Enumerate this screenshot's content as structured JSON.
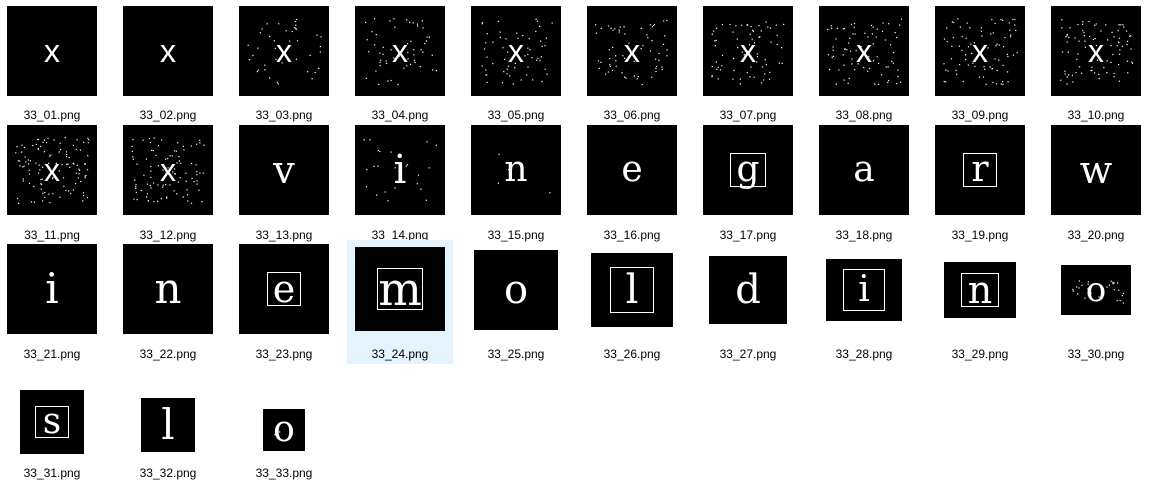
{
  "files": [
    {
      "name": "33_01.png",
      "char": "x",
      "font": "sans",
      "noise": 0,
      "boxed": false
    },
    {
      "name": "33_02.png",
      "char": "x",
      "font": "sans",
      "noise": 0,
      "boxed": false
    },
    {
      "name": "33_03.png",
      "char": "x",
      "font": "sans",
      "noise": 40,
      "boxed": false
    },
    {
      "name": "33_04.png",
      "char": "x",
      "font": "sans",
      "noise": 55,
      "boxed": false
    },
    {
      "name": "33_05.png",
      "char": "x",
      "font": "sans",
      "noise": 60,
      "boxed": false
    },
    {
      "name": "33_06.png",
      "char": "x",
      "font": "sans",
      "noise": 65,
      "boxed": false
    },
    {
      "name": "33_07.png",
      "char": "x",
      "font": "sans",
      "noise": 70,
      "boxed": false
    },
    {
      "name": "33_08.png",
      "char": "x",
      "font": "sans",
      "noise": 75,
      "boxed": false
    },
    {
      "name": "33_09.png",
      "char": "x",
      "font": "sans",
      "noise": 80,
      "boxed": false
    },
    {
      "name": "33_10.png",
      "char": "x",
      "font": "sans",
      "noise": 85,
      "boxed": false
    },
    {
      "name": "33_11.png",
      "char": "x",
      "font": "sans",
      "noise": 110,
      "boxed": false
    },
    {
      "name": "33_12.png",
      "char": "x",
      "font": "sans",
      "noise": 95,
      "boxed": false
    },
    {
      "name": "33_13.png",
      "char": "v",
      "font": "serif",
      "noise": 0,
      "boxed": false
    },
    {
      "name": "33_14.png",
      "char": "i",
      "font": "serif",
      "noise": 25,
      "boxed": false
    },
    {
      "name": "33_15.png",
      "char": "n",
      "font": "serif",
      "noise": 4,
      "boxed": false
    },
    {
      "name": "33_16.png",
      "char": "e",
      "font": "serif",
      "noise": 0,
      "boxed": false
    },
    {
      "name": "33_17.png",
      "char": "g",
      "font": "serif",
      "noise": 0,
      "boxed": true
    },
    {
      "name": "33_18.png",
      "char": "a",
      "font": "serif",
      "noise": 0,
      "boxed": false
    },
    {
      "name": "33_19.png",
      "char": "r",
      "font": "serif",
      "noise": 0,
      "boxed": true
    },
    {
      "name": "33_20.png",
      "char": "w",
      "font": "serif",
      "noise": 0,
      "boxed": false
    },
    {
      "name": "33_21.png",
      "char": "i",
      "font": "serif",
      "noise": 0,
      "boxed": false
    },
    {
      "name": "33_22.png",
      "char": "n",
      "font": "serif",
      "noise": 0,
      "boxed": false
    },
    {
      "name": "33_23.png",
      "char": "e",
      "font": "serif",
      "noise": 0,
      "boxed": true
    },
    {
      "name": "33_24.png",
      "char": "m",
      "font": "serif",
      "noise": 0,
      "boxed": true,
      "selected": true
    },
    {
      "name": "33_25.png",
      "char": "o",
      "font": "serif",
      "noise": 0,
      "boxed": false
    },
    {
      "name": "33_26.png",
      "char": "l",
      "font": "serif",
      "noise": 0,
      "boxed": true
    },
    {
      "name": "33_27.png",
      "char": "d",
      "font": "serif",
      "noise": 0,
      "boxed": false
    },
    {
      "name": "33_28.png",
      "char": "i",
      "font": "serif",
      "noise": 0,
      "boxed": true
    },
    {
      "name": "33_29.png",
      "char": "n",
      "font": "serif",
      "noise": 0,
      "boxed": true
    },
    {
      "name": "33_30.png",
      "char": "o",
      "font": "serif",
      "noise": 30,
      "boxed": false
    },
    {
      "name": "33_31.png",
      "char": "s",
      "font": "serif",
      "noise": 0,
      "boxed": true
    },
    {
      "name": "33_32.png",
      "char": "l",
      "font": "serif",
      "noise": 0,
      "boxed": false
    },
    {
      "name": "33_33.png",
      "char": "o",
      "font": "serif",
      "noise": 2,
      "boxed": false
    }
  ],
  "colors": {
    "selection": "#e5f3ff",
    "thumb_bg": "#000000",
    "glyph": "#ffffff"
  }
}
